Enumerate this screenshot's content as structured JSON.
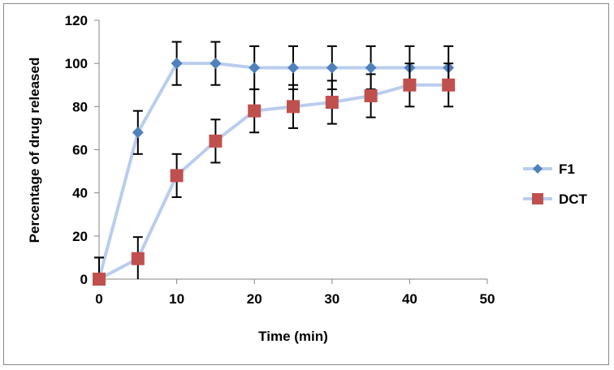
{
  "chart_data": {
    "type": "line",
    "title": "",
    "xlabel": "Time (min)",
    "ylabel": "Percentage of drug released",
    "xlim": [
      0,
      50
    ],
    "ylim": [
      0,
      120
    ],
    "xticks": [
      0,
      10,
      20,
      30,
      40,
      50
    ],
    "yticks": [
      0,
      20,
      40,
      60,
      80,
      100,
      120
    ],
    "grid": false,
    "legend_placement": "right",
    "x": [
      0,
      5,
      10,
      15,
      20,
      25,
      30,
      35,
      40,
      45
    ],
    "series": [
      {
        "name": "F1",
        "marker": "diamond",
        "marker_color": "#4F81BD",
        "line_color": "#B9CDEE",
        "values": [
          0,
          68,
          100,
          100,
          98,
          98,
          98,
          98,
          98,
          98
        ],
        "error": [
          10,
          10,
          10,
          10,
          10,
          10,
          10,
          10,
          10,
          10
        ]
      },
      {
        "name": "DCT",
        "marker": "square",
        "marker_color": "#C0504D",
        "line_color": "#B9CDEE",
        "values": [
          0,
          9.5,
          48,
          64,
          78,
          80,
          82,
          85,
          90,
          90
        ],
        "error": [
          10,
          10,
          10,
          10,
          10,
          10,
          10,
          10,
          10,
          10
        ]
      }
    ]
  }
}
